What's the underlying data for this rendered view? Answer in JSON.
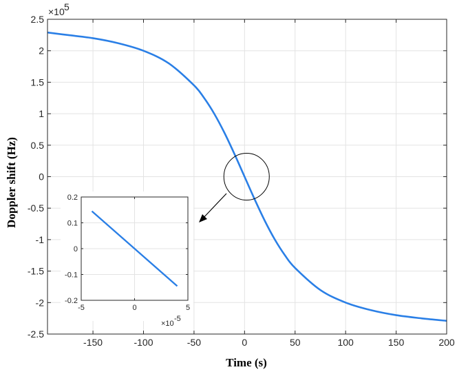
{
  "chart_data": {
    "type": "line",
    "xlabel": "Time (s)",
    "ylabel": "Doppler shift (Hz)",
    "xlim": [
      -195,
      200
    ],
    "ylim": [
      -2.5,
      2.5
    ],
    "y_exponent_label": "×10",
    "y_exponent_power": "5",
    "grid": true,
    "x_ticks": [
      {
        "value": -150,
        "label": "-150"
      },
      {
        "value": -100,
        "label": "-100"
      },
      {
        "value": -50,
        "label": "-50"
      },
      {
        "value": 0,
        "label": "0"
      },
      {
        "value": 50,
        "label": "50"
      },
      {
        "value": 100,
        "label": "100"
      },
      {
        "value": 150,
        "label": "150"
      },
      {
        "value": 200,
        "label": "200"
      }
    ],
    "y_ticks": [
      {
        "value": 2.5,
        "label": "2.5"
      },
      {
        "value": 2,
        "label": "2"
      },
      {
        "value": 1.5,
        "label": "1.5"
      },
      {
        "value": 1,
        "label": "1"
      },
      {
        "value": 0.5,
        "label": "0.5"
      },
      {
        "value": 0,
        "label": "0"
      },
      {
        "value": -0.5,
        "label": "-0.5"
      },
      {
        "value": -1,
        "label": "-1"
      },
      {
        "value": -1.5,
        "label": "-1.5"
      },
      {
        "value": -2,
        "label": "-2"
      },
      {
        "value": -2.5,
        "label": "-2.5"
      }
    ],
    "series": [
      {
        "color": "#2a7fe6",
        "x": [
          -195,
          -175,
          -150,
          -125,
          -100,
          -75,
          -50,
          -40,
          -30,
          -20,
          -10,
          0,
          10,
          20,
          30,
          40,
          50,
          75,
          100,
          125,
          150,
          175,
          200
        ],
        "y": [
          2.29,
          2.25,
          2.2,
          2.12,
          2.0,
          1.8,
          1.45,
          1.25,
          1.0,
          0.7,
          0.36,
          0.0,
          -0.36,
          -0.7,
          -1.0,
          -1.25,
          -1.45,
          -1.8,
          -2.0,
          -2.12,
          -2.2,
          -2.25,
          -2.29
        ]
      }
    ],
    "annotations": {
      "circle_center": [
        2,
        0.0
      ],
      "arrow_direction": "down-left toward inset"
    },
    "inset": {
      "xlim": [
        -5,
        5
      ],
      "ylim": [
        -0.2,
        0.2
      ],
      "x_exponent_label": "×10",
      "x_exponent_power": "-5",
      "grid": true,
      "x_ticks": [
        {
          "value": -5,
          "label": "-5"
        },
        {
          "value": 0,
          "label": "0"
        },
        {
          "value": 5,
          "label": "5"
        }
      ],
      "y_ticks": [
        {
          "value": 0.2,
          "label": "0.2"
        },
        {
          "value": 0.1,
          "label": "0.1"
        },
        {
          "value": 0,
          "label": "0"
        },
        {
          "value": -0.1,
          "label": "-0.1"
        },
        {
          "value": -0.2,
          "label": "-0.2"
        }
      ],
      "series": [
        {
          "color": "#2a7fe6",
          "x": [
            -4,
            4
          ],
          "y": [
            0.145,
            -0.145
          ]
        }
      ]
    }
  }
}
